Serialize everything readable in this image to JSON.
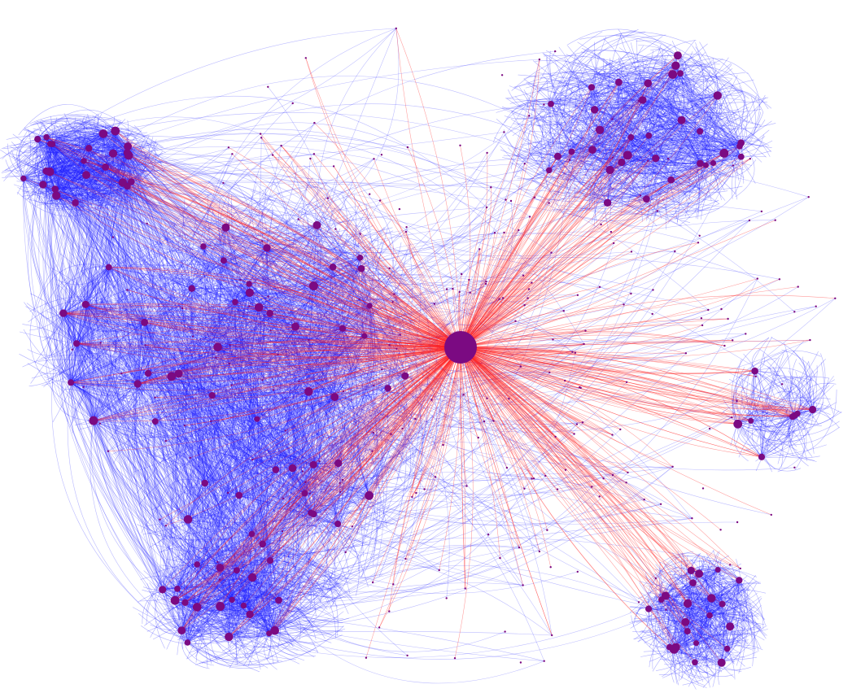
{
  "graph": {
    "colors": {
      "background": "#ffffff",
      "node": "#7b0a82",
      "edge_internal": "#1f1fff",
      "edge_hub": "#ff2020"
    },
    "hub": {
      "id": "hub",
      "cluster": "center"
    },
    "clusters": [
      {
        "id": "cluster-northwest",
        "node_count": 24
      },
      {
        "id": "cluster-west",
        "node_count": 8
      },
      {
        "id": "cluster-central",
        "node_count": 44
      },
      {
        "id": "cluster-south",
        "node_count": 20
      },
      {
        "id": "cluster-northeast",
        "node_count": 34
      },
      {
        "id": "cluster-east",
        "node_count": 8
      },
      {
        "id": "cluster-southeast",
        "node_count": 22
      }
    ]
  }
}
